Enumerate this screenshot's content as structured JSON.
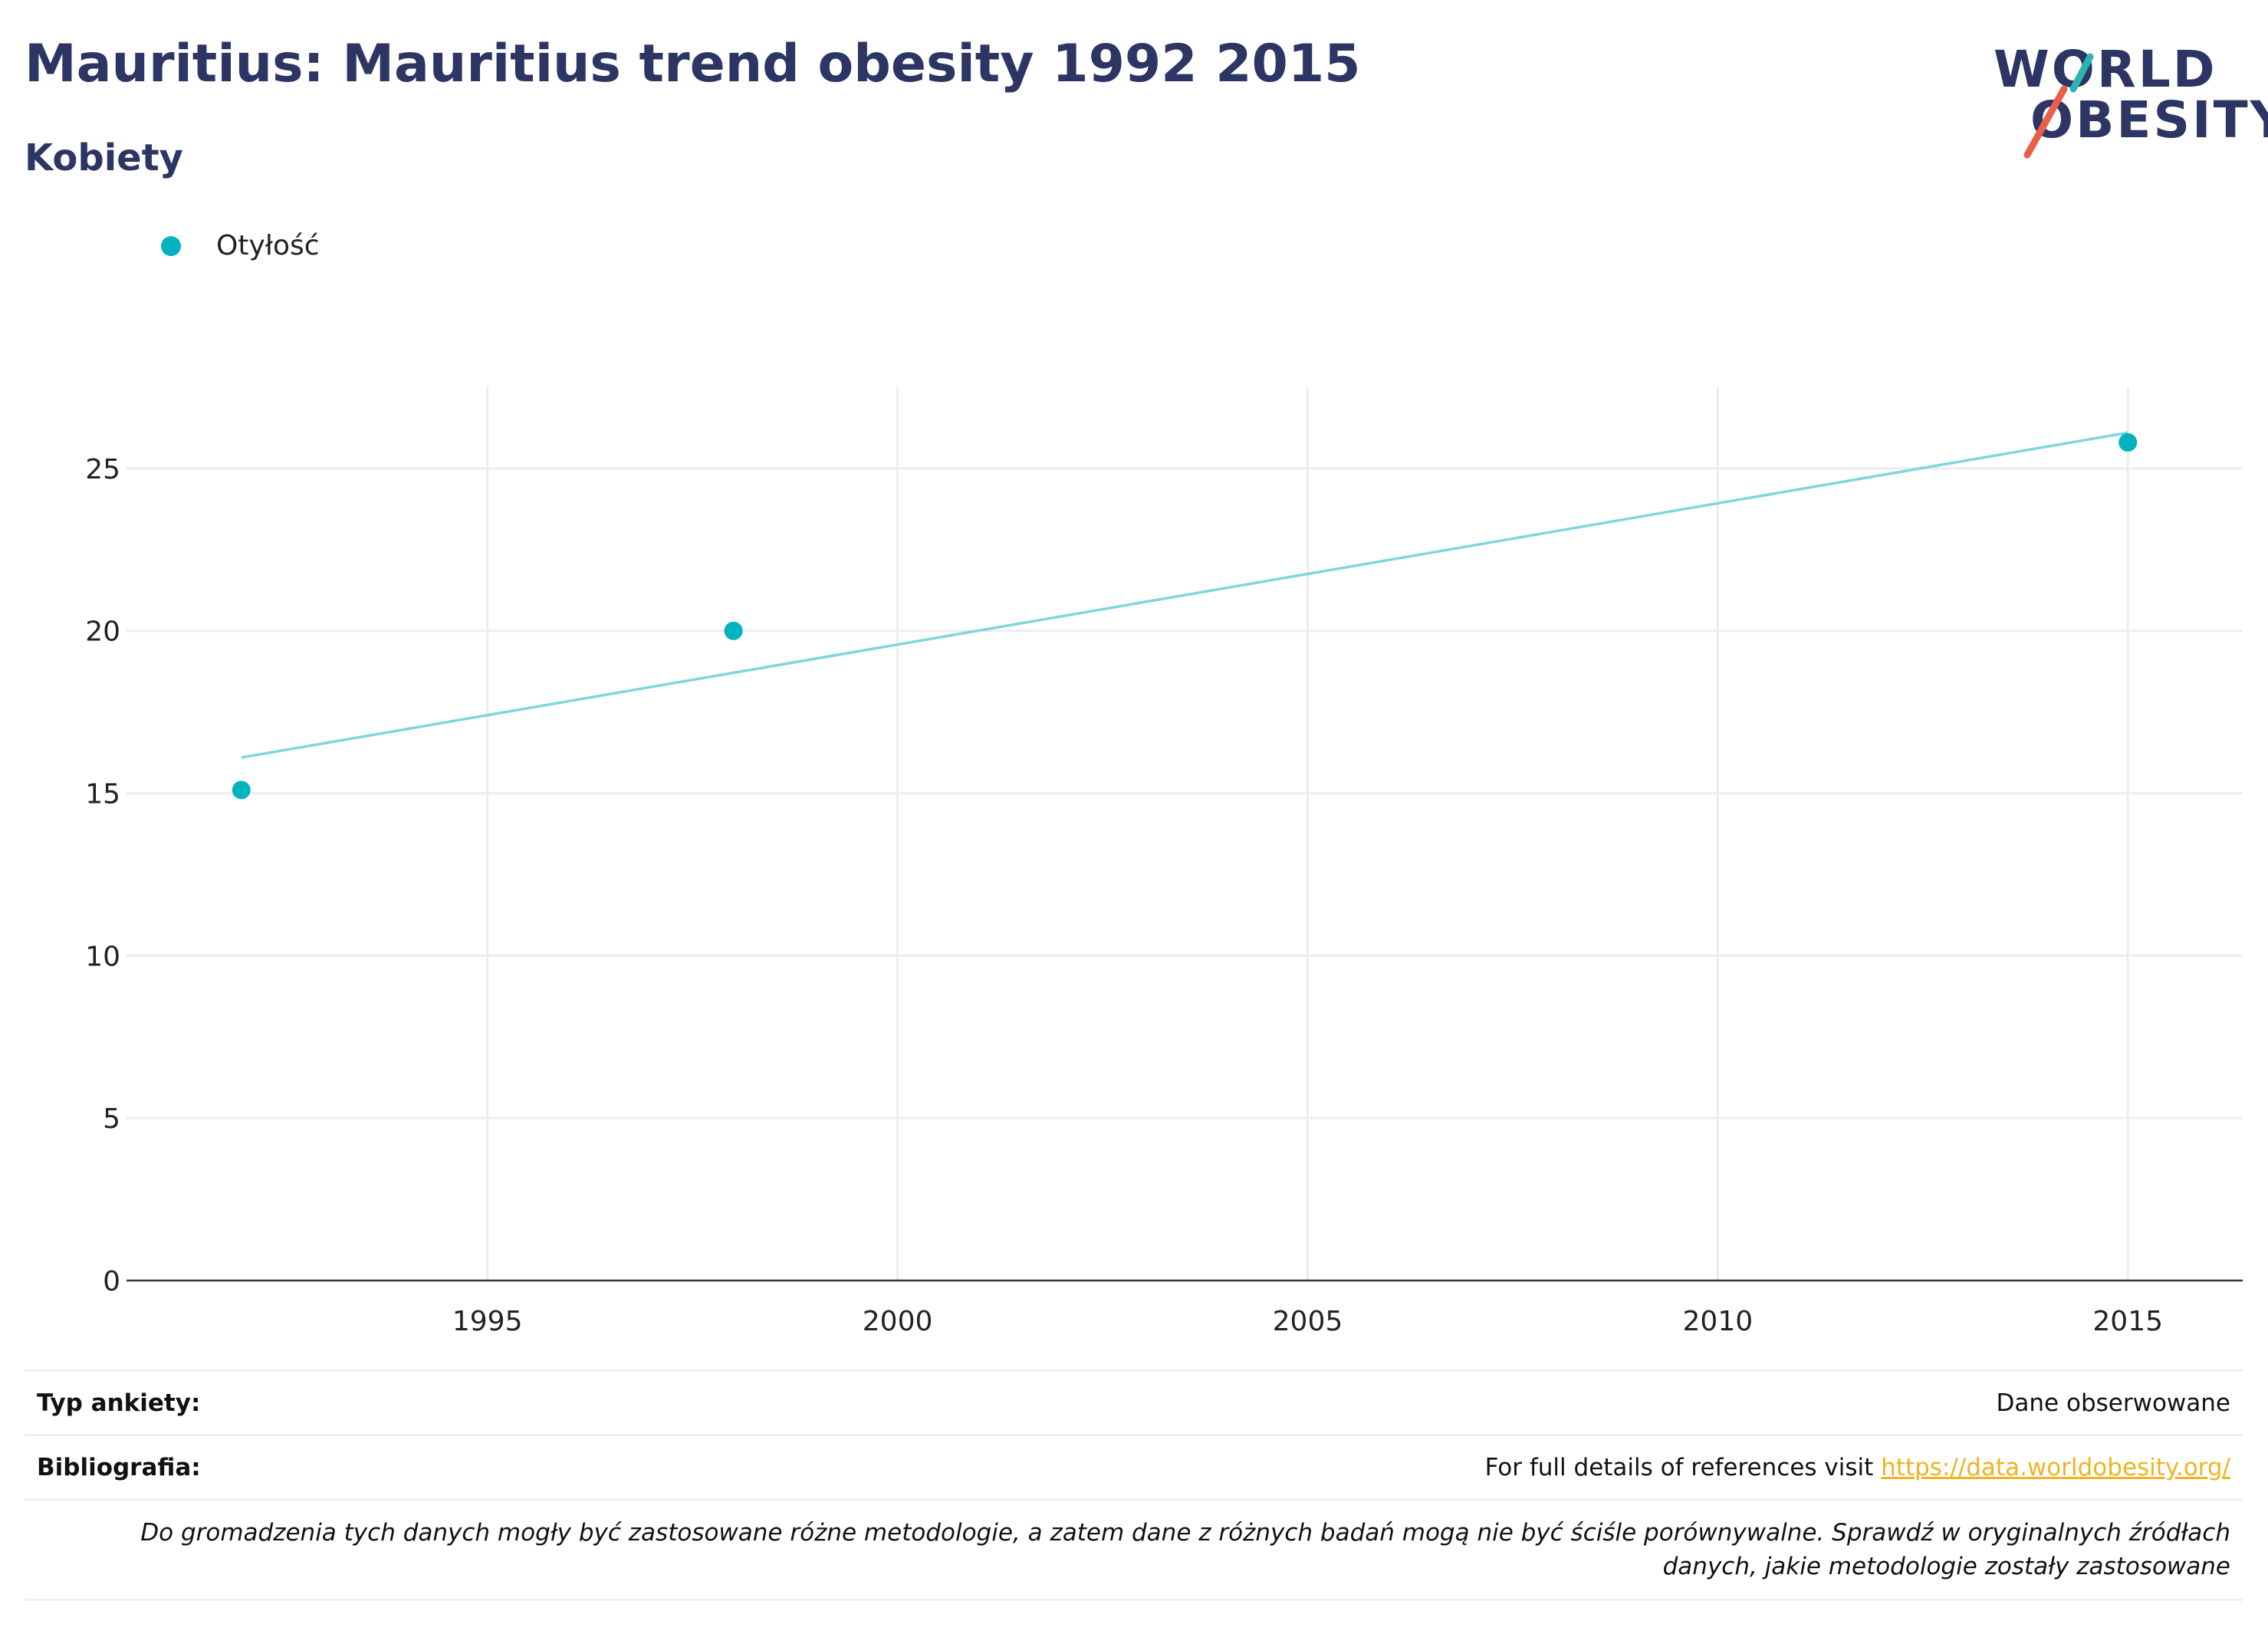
{
  "header": {
    "title": "Mauritius: Mauritius trend obesity 1992 2015",
    "subtitle": "Kobiety"
  },
  "logo": {
    "line1": "WORLD",
    "line2": "OBESITY",
    "accent_teal": "#2bb5b0",
    "accent_red": "#e8604c"
  },
  "legend": {
    "label": "Otyłość",
    "color": "#00b3bf"
  },
  "chart_data": {
    "type": "scatter",
    "series": [
      {
        "name": "Otyłość",
        "x": [
          1992,
          1998,
          2015
        ],
        "y": [
          15.1,
          20.0,
          25.8
        ],
        "color": "#00b3bf"
      }
    ],
    "trendline": {
      "x": [
        1992,
        2015
      ],
      "y": [
        16.1,
        26.1
      ],
      "color": "#7fd6dc"
    },
    "xlim": [
      1990.6,
      2016.4
    ],
    "ylim": [
      0,
      27.5
    ],
    "xticks": [
      "1995",
      "2000",
      "2005",
      "2010",
      "2015"
    ],
    "yticks": [
      "0",
      "5",
      "10",
      "15",
      "20",
      "25"
    ],
    "grid": true,
    "xlabel": "",
    "ylabel": ""
  },
  "info": {
    "survey_type_label": "Typ ankiety:",
    "survey_type_value": "Dane obserwowane",
    "bibliography_label": "Bibliografia:",
    "bibliography_text": "For full details of references visit ",
    "bibliography_link": "https://data.worldobesity.org/",
    "note_line1": "Do gromadzenia tych danych mogły być zastosowane różne metodologie, a zatem dane z różnych badań mogą nie być ściśle porównywalne. Sprawdź w oryginalnych źródłach",
    "note_line2": "danych, jakie metodologie zostały zastosowane"
  }
}
